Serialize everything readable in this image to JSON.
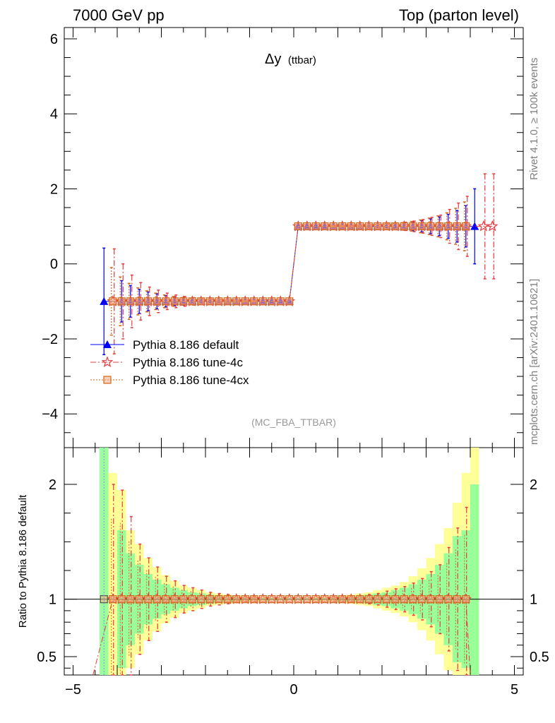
{
  "header": {
    "energy_label": "7000 GeV pp",
    "process_label": "Top (parton level)",
    "observable": "Δy",
    "observable_sub": "(ttbar)",
    "analysis_tag": "(MC_FBA_TTBAR)",
    "side_label_top": "Rivet 4.1.0, ≥ 100k events",
    "side_label_bottom": "mcplots.cern.ch [arXiv:2401.10621]"
  },
  "legend": [
    {
      "label": "Pythia 8.186 default",
      "color": "#0000ff",
      "marker": "triangle",
      "line": "solid"
    },
    {
      "label": "Pythia 8.186 tune-4c",
      "color": "#e8393e",
      "marker": "star",
      "line": "dashdot"
    },
    {
      "label": "Pythia 8.186 tune-4cx",
      "color": "#d2691e",
      "marker": "square",
      "line": "dotted"
    }
  ],
  "chart_data": {
    "type": "line",
    "title": "Δy (ttbar)",
    "xlabel": "",
    "ylabel": "",
    "xlim": [
      -5.2,
      5.2
    ],
    "ylim": [
      -4.9,
      6.3
    ],
    "x_ticks": [
      -5,
      0,
      5
    ],
    "x_tick_labels": [
      "−5",
      "0",
      "5"
    ],
    "y_ticks": [
      -4,
      -2,
      0,
      2,
      4,
      6
    ],
    "y_tick_labels": [
      "−4",
      "−2",
      "0",
      "2",
      "4",
      "6"
    ],
    "x": [
      -4.3,
      -4.1,
      -3.9,
      -3.7,
      -3.5,
      -3.3,
      -3.1,
      -2.9,
      -2.7,
      -2.5,
      -2.3,
      -2.1,
      -1.9,
      -1.7,
      -1.5,
      -1.3,
      -1.1,
      -0.9,
      -0.7,
      -0.5,
      -0.3,
      -0.1,
      0.1,
      0.3,
      0.5,
      0.7,
      0.9,
      1.1,
      1.3,
      1.5,
      1.7,
      1.9,
      2.1,
      2.3,
      2.5,
      2.7,
      2.9,
      3.1,
      3.3,
      3.5,
      3.7,
      3.9,
      4.1,
      4.3,
      4.5
    ],
    "series": [
      {
        "name": "Pythia 8.186 default",
        "values": [
          -1,
          null,
          -1,
          -1,
          -1,
          -1,
          -1,
          -1,
          -1,
          -1,
          -1,
          -1,
          -1,
          -1,
          -1,
          -1,
          -1,
          -1,
          -1,
          -1,
          -1,
          -1,
          1,
          1,
          1,
          1,
          1,
          1,
          1,
          1,
          1,
          1,
          1,
          1,
          1,
          1,
          1,
          1,
          1,
          1,
          1,
          1,
          1,
          null,
          null
        ],
        "errors": [
          1.42,
          null,
          0.55,
          0.42,
          0.32,
          0.25,
          0.2,
          0.15,
          0.12,
          0.1,
          0.08,
          0.06,
          0.05,
          0.04,
          0.03,
          0.02,
          0.02,
          0.02,
          0.01,
          0.01,
          0.01,
          0.01,
          0.01,
          0.01,
          0.01,
          0.01,
          0.02,
          0.02,
          0.02,
          0.03,
          0.04,
          0.05,
          0.06,
          0.08,
          0.1,
          0.12,
          0.15,
          0.2,
          0.25,
          0.32,
          0.42,
          0.55,
          1.0,
          null,
          null
        ]
      },
      {
        "name": "Pythia 8.186 tune-4c",
        "values": [
          null,
          -1,
          -1,
          -1,
          -1,
          -1,
          -1,
          -1,
          -1,
          -1,
          -1,
          -1,
          -1,
          -1,
          -1,
          -1,
          -1,
          -1,
          -1,
          -1,
          -1,
          -1,
          1,
          1,
          1,
          1,
          1,
          1,
          1,
          1,
          1,
          1,
          1,
          1,
          1,
          1,
          1,
          1,
          1,
          1,
          1,
          1,
          null,
          1,
          1
        ],
        "errors": [
          null,
          1.4,
          1.0,
          0.7,
          0.5,
          0.38,
          0.3,
          0.22,
          0.17,
          0.13,
          0.1,
          0.08,
          0.06,
          0.05,
          0.04,
          0.03,
          0.02,
          0.02,
          0.01,
          0.01,
          0.01,
          0.01,
          0.01,
          0.01,
          0.01,
          0.01,
          0.02,
          0.02,
          0.02,
          0.03,
          0.04,
          0.05,
          0.07,
          0.09,
          0.11,
          0.14,
          0.18,
          0.24,
          0.3,
          0.45,
          0.62,
          0.8,
          null,
          1.4,
          1.4
        ]
      },
      {
        "name": "Pythia 8.186 tune-4cx",
        "values": [
          null,
          -1,
          -1,
          -1,
          -1,
          -1,
          -1,
          -1,
          -1,
          -1,
          -1,
          -1,
          -1,
          -1,
          -1,
          -1,
          -1,
          -1,
          -1,
          -1,
          -1,
          -1,
          1,
          1,
          1,
          1,
          1,
          1,
          1,
          1,
          1,
          1,
          1,
          1,
          1,
          1,
          1,
          1,
          1,
          1,
          1,
          1,
          null,
          null,
          null
        ],
        "errors": [
          null,
          0.9,
          0.65,
          0.48,
          0.36,
          0.28,
          0.22,
          0.17,
          0.13,
          0.1,
          0.08,
          0.06,
          0.05,
          0.04,
          0.03,
          0.02,
          0.02,
          0.02,
          0.01,
          0.01,
          0.01,
          0.01,
          0.01,
          0.01,
          0.01,
          0.01,
          0.02,
          0.02,
          0.02,
          0.03,
          0.04,
          0.05,
          0.06,
          0.08,
          0.1,
          0.13,
          0.17,
          0.22,
          0.28,
          0.36,
          0.48,
          0.65,
          null,
          null,
          null
        ]
      }
    ],
    "ratio_panel": {
      "ylabel": "Ratio to Pythia 8.186 default",
      "ylim": [
        0.34,
        2.32
      ],
      "y_ticks": [
        0.5,
        1,
        2
      ],
      "y_tick_labels": [
        "0.5",
        "1",
        "2"
      ],
      "band_edges": [
        -4.4,
        -4.2,
        -4.0,
        -3.8,
        -3.6,
        -3.4,
        -3.2,
        -3.0,
        -2.8,
        -2.6,
        -2.4,
        -2.2,
        -2.0,
        -1.8,
        -1.6,
        -1.4,
        -1.2,
        -1.0,
        -0.8,
        -0.6,
        -0.4,
        -0.2,
        0.0,
        0.2,
        0.4,
        0.6,
        0.8,
        1.0,
        1.2,
        1.4,
        1.6,
        1.8,
        2.0,
        2.2,
        2.4,
        2.6,
        2.8,
        3.0,
        3.2,
        3.4,
        3.6,
        3.8,
        4.0,
        4.2
      ],
      "green_band": [
        2.4,
        0,
        1.6,
        1.4,
        1.3,
        1.22,
        1.17,
        1.13,
        1.1,
        1.08,
        1.06,
        1.05,
        1.04,
        1.03,
        1.02,
        1.02,
        1.01,
        1.01,
        1.01,
        1.01,
        1.01,
        1.01,
        1.01,
        1.01,
        1.01,
        1.01,
        1.01,
        1.02,
        1.02,
        1.03,
        1.04,
        1.05,
        1.06,
        1.08,
        1.1,
        1.13,
        1.17,
        1.22,
        1.3,
        1.4,
        1.55,
        1.6,
        2.0
      ],
      "yellow_band": [
        0,
        2.1,
        1.95,
        1.6,
        1.48,
        1.36,
        1.28,
        1.21,
        1.16,
        1.12,
        1.1,
        1.08,
        1.06,
        1.05,
        1.04,
        1.03,
        1.02,
        1.02,
        1.02,
        1.01,
        1.01,
        1.01,
        1.01,
        1.01,
        1.02,
        1.02,
        1.02,
        1.03,
        1.04,
        1.05,
        1.06,
        1.08,
        1.1,
        1.12,
        1.15,
        1.2,
        1.27,
        1.36,
        1.48,
        1.62,
        1.84,
        2.1,
        2.4
      ],
      "ratio_tune4c": [
        null,
        1.0,
        1.0,
        1.0,
        1.0,
        1.0,
        1.0,
        1.0,
        1.0,
        1.0,
        1.0,
        1.0,
        1.0,
        1.0,
        1.0,
        1.0,
        1.0,
        1.0,
        1.0,
        1.0,
        1.0,
        1.0,
        1.0,
        1.0,
        1.0,
        1.0,
        1.0,
        1.0,
        1.0,
        1.0,
        1.0,
        1.0,
        1.0,
        1.0,
        1.0,
        1.0,
        1.0,
        1.0,
        1.0,
        1.0,
        1.0,
        1.0,
        null,
        null,
        null
      ],
      "ratio_errors": [
        null,
        1.0,
        0.95,
        0.72,
        0.48,
        0.36,
        0.28,
        0.2,
        0.16,
        0.12,
        0.1,
        0.08,
        0.06,
        0.05,
        0.04,
        0.03,
        0.02,
        0.02,
        0.01,
        0.01,
        0.01,
        0.01,
        0.01,
        0.01,
        0.01,
        0.01,
        0.02,
        0.02,
        0.02,
        0.03,
        0.04,
        0.05,
        0.07,
        0.09,
        0.11,
        0.14,
        0.18,
        0.24,
        0.3,
        0.45,
        0.62,
        0.8,
        null,
        null,
        null
      ]
    }
  }
}
